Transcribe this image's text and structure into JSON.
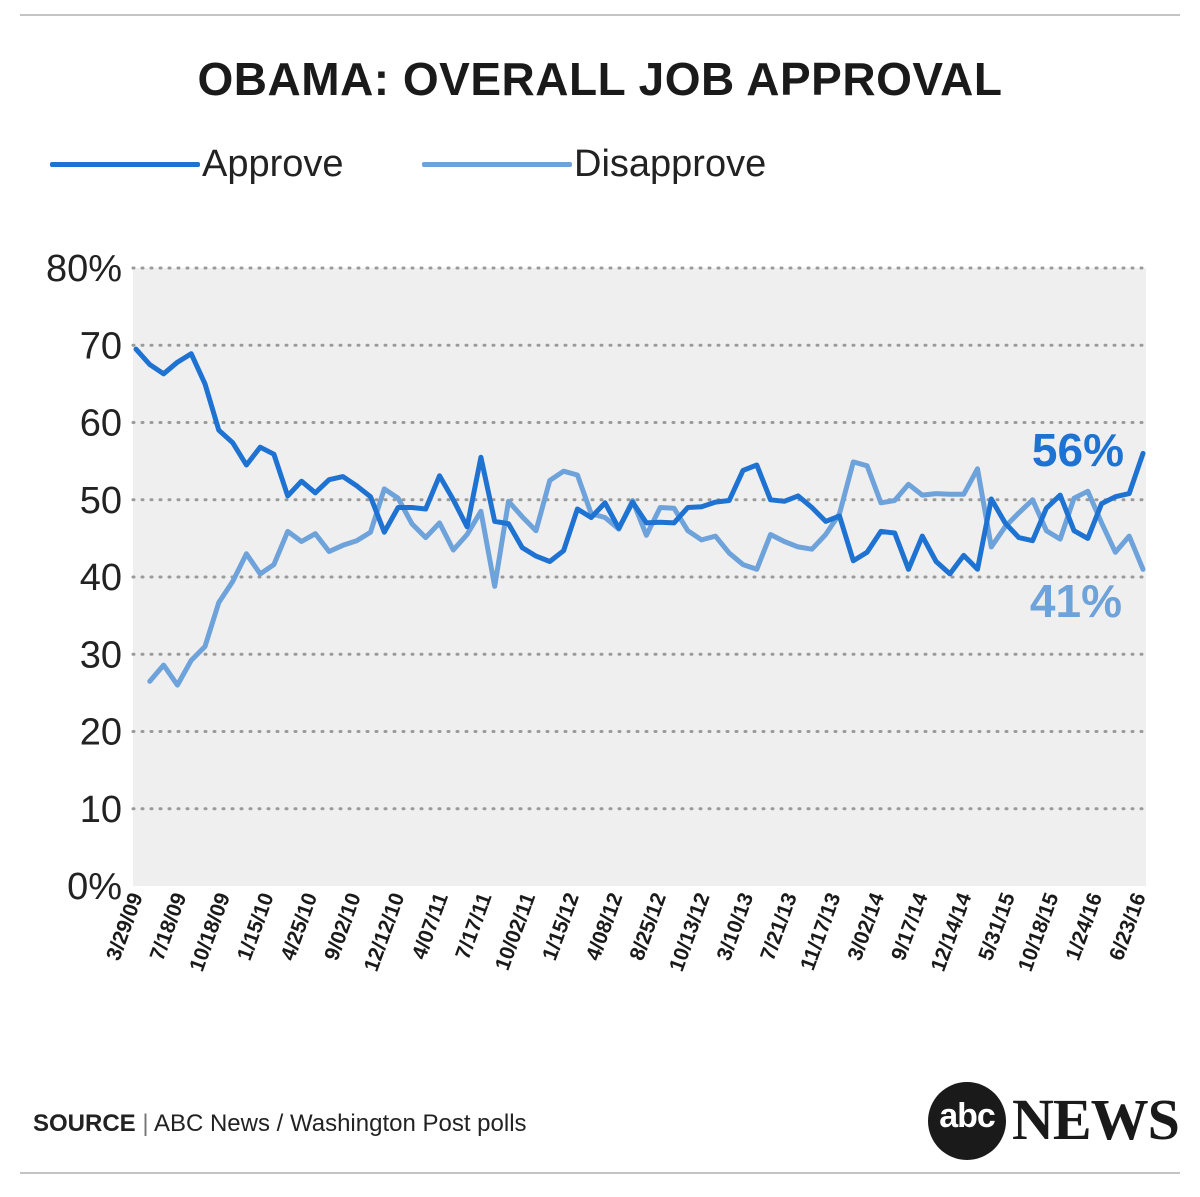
{
  "chart_data": {
    "type": "line",
    "title": "OBAMA: OVERALL JOB APPROVAL",
    "ylim": [
      0,
      80
    ],
    "yticks": [
      0,
      10,
      20,
      30,
      40,
      50,
      60,
      70,
      80
    ],
    "ytick_labels": [
      "0%",
      "10",
      "20",
      "30",
      "40",
      "50",
      "60",
      "70",
      "80%"
    ],
    "x_tick_labels": [
      "3/29/09",
      "7/18/09",
      "10/18/09",
      "1/15/10",
      "4/25/10",
      "9/02/10",
      "12/12/10",
      "4/07/11",
      "7/17/11",
      "10/02/11",
      "1/15/12",
      "4/08/12",
      "8/25/12",
      "10/13/12",
      "3/10/13",
      "7/21/13",
      "11/17/13",
      "3/02/14",
      "9/17/14",
      "12/14/14",
      "5/31/15",
      "10/18/15",
      "1/24/16",
      "6/23/16"
    ],
    "grid": "horizontal dotted",
    "series": [
      {
        "name": "Approve",
        "color": "#1e73d2",
        "values": [
          69.5,
          67.5,
          66.3,
          67.8,
          68.9,
          65,
          59,
          57.4,
          54.5,
          56.8,
          55.9,
          50.5,
          52.4,
          50.9,
          52.6,
          53,
          51.8,
          50.4,
          45.8,
          49,
          49,
          48.8,
          53.1,
          50,
          46.5,
          55.5,
          47.2,
          46.9,
          43.8,
          42.7,
          42,
          43.4,
          48.8,
          47.7,
          49.6,
          46.3,
          49.7,
          47,
          47.1,
          47,
          49,
          49.1,
          49.7,
          49.9,
          53.8,
          54.5,
          50,
          49.8,
          50.5,
          49,
          47.2,
          47.9,
          42.1,
          43.2,
          45.9,
          45.7,
          41,
          45.3,
          42,
          40.4,
          42.8,
          41,
          50.1,
          47,
          45.1,
          44.7,
          48.9,
          50.6,
          46,
          45,
          49.5,
          50.4,
          50.8,
          56
        ]
      },
      {
        "name": "Disapprove",
        "color": "#6ea2da",
        "values": [
          null,
          26.5,
          28.6,
          26,
          29.2,
          31,
          36.7,
          39.4,
          43,
          40.4,
          41.6,
          45.9,
          44.6,
          45.6,
          43.3,
          44.1,
          44.7,
          45.8,
          51.4,
          50.2,
          46.9,
          45.1,
          47,
          43.5,
          45.5,
          48.5,
          38.8,
          49.8,
          47.8,
          46,
          52.5,
          53.7,
          53.2,
          48.2,
          47.7,
          46.2,
          49.9,
          45.4,
          49,
          48.9,
          46,
          44.8,
          45.3,
          43.1,
          41.6,
          41,
          45.5,
          44.6,
          43.9,
          43.6,
          45.5,
          48.2,
          54.9,
          54.4,
          49.6,
          49.9,
          52,
          50.6,
          50.8,
          50.7,
          50.7,
          54,
          43.9,
          46.5,
          48.3,
          50,
          46,
          44.9,
          50.2,
          51.1,
          47,
          43.2,
          45.3,
          41
        ]
      }
    ],
    "annotations": [
      {
        "series": "Approve",
        "text": "56%"
      },
      {
        "series": "Disapprove",
        "text": "41%"
      }
    ]
  },
  "legend": {
    "approve_label": "Approve",
    "disapprove_label": "Disapprove"
  },
  "footer": {
    "source_label": "SOURCE",
    "source_separator": "|",
    "source_text": "ABC News / Washington Post polls"
  },
  "logo": {
    "abc": "abc",
    "news": "NEWS"
  },
  "colors": {
    "approve": "#1e73d2",
    "disapprove": "#6ea2da",
    "plot_bg": "#efefef",
    "rule": "#c4c4c4"
  }
}
